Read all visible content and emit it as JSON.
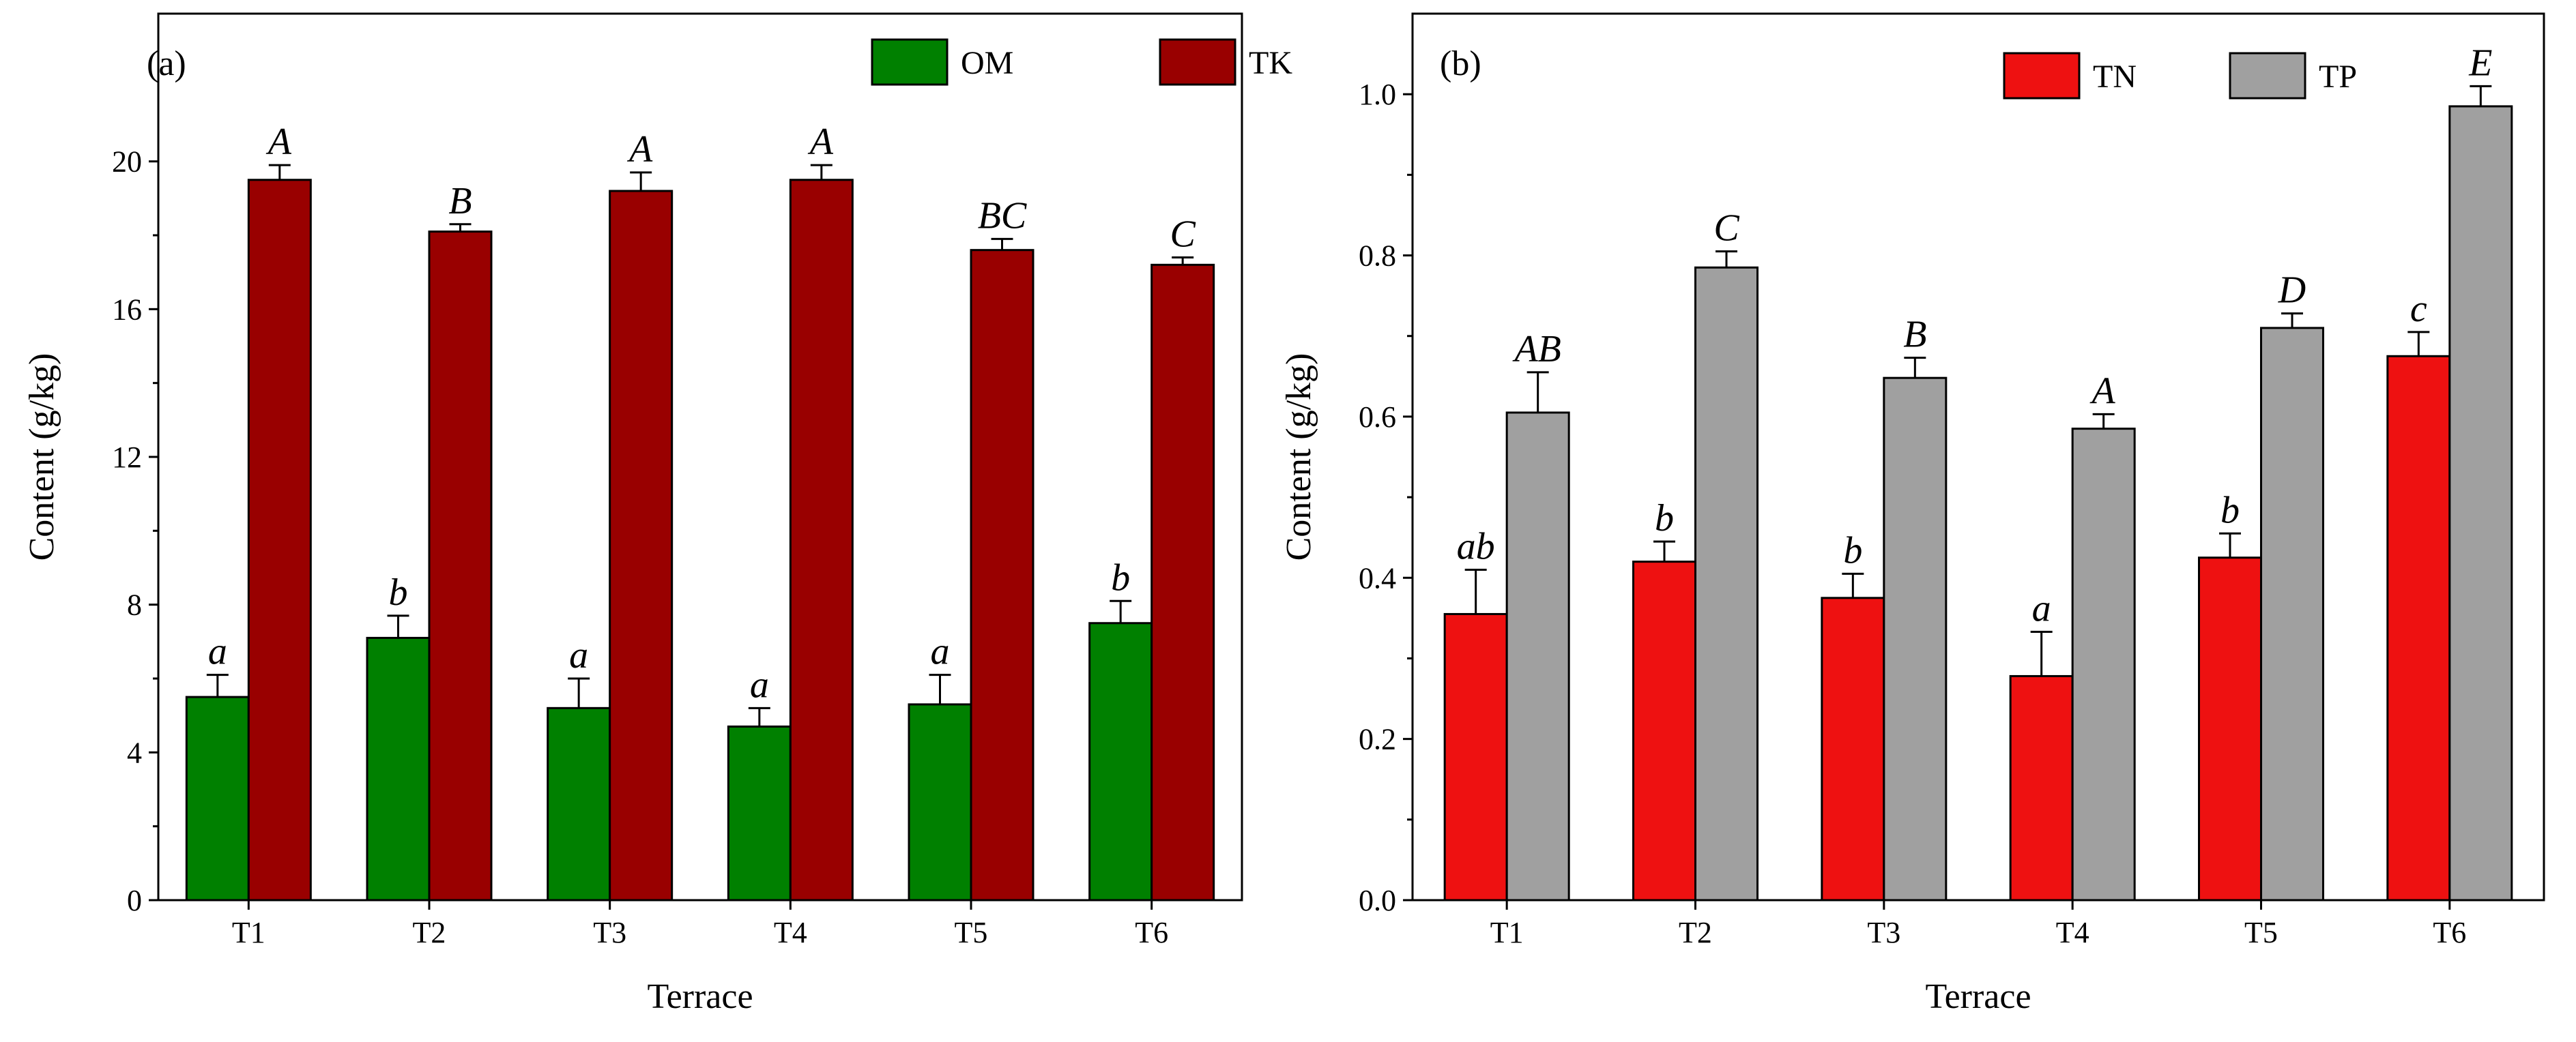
{
  "chart_data": [
    {
      "type": "bar",
      "panel_label": "(a)",
      "categories": [
        "T1",
        "T2",
        "T3",
        "T4",
        "T5",
        "T6"
      ],
      "xlabel": "Terrace",
      "ylabel": "Content (g/kg)",
      "ylim": [
        0,
        24
      ],
      "yticks": [
        "0",
        "4",
        "8",
        "12",
        "16",
        "20"
      ],
      "ytick_values": [
        0,
        4,
        8,
        12,
        16,
        20
      ],
      "legend_position": "top-right",
      "series": [
        {
          "name": "OM",
          "color": "#008000",
          "values": [
            5.5,
            7.1,
            5.2,
            4.7,
            5.3,
            7.5
          ],
          "errors": [
            0.6,
            0.6,
            0.8,
            0.5,
            0.8,
            0.6
          ],
          "labels": [
            "a",
            "b",
            "a",
            "a",
            "a",
            "b"
          ]
        },
        {
          "name": "TK",
          "color": "#990000",
          "values": [
            19.5,
            18.1,
            19.2,
            19.5,
            17.6,
            17.2
          ],
          "errors": [
            0.4,
            0.2,
            0.5,
            0.4,
            0.3,
            0.2
          ],
          "labels": [
            "A",
            "B",
            "A",
            "A",
            "BC",
            "C"
          ]
        }
      ]
    },
    {
      "type": "bar",
      "panel_label": "(b)",
      "categories": [
        "T1",
        "T2",
        "T3",
        "T4",
        "T5",
        "T6"
      ],
      "xlabel": "Terrace",
      "ylabel": "Content (g/kg)",
      "ylim": [
        0,
        1.1
      ],
      "yticks": [
        "0.0",
        "0.2",
        "0.4",
        "0.6",
        "0.8",
        "1.0"
      ],
      "ytick_values": [
        0,
        0.2,
        0.4,
        0.6,
        0.8,
        1.0
      ],
      "legend_position": "top-right",
      "series": [
        {
          "name": "TN",
          "color": "#ee1111",
          "values": [
            0.355,
            0.42,
            0.375,
            0.278,
            0.425,
            0.675
          ],
          "errors": [
            0.055,
            0.025,
            0.03,
            0.055,
            0.03,
            0.03
          ],
          "labels": [
            "ab",
            "b",
            "b",
            "a",
            "b",
            "c"
          ]
        },
        {
          "name": "TP",
          "color": "#a0a0a0",
          "values": [
            0.605,
            0.785,
            0.648,
            0.585,
            0.71,
            0.985
          ],
          "errors": [
            0.05,
            0.02,
            0.025,
            0.018,
            0.018,
            0.025
          ],
          "labels": [
            "AB",
            "C",
            "B",
            "A",
            "D",
            "E"
          ]
        }
      ]
    }
  ]
}
